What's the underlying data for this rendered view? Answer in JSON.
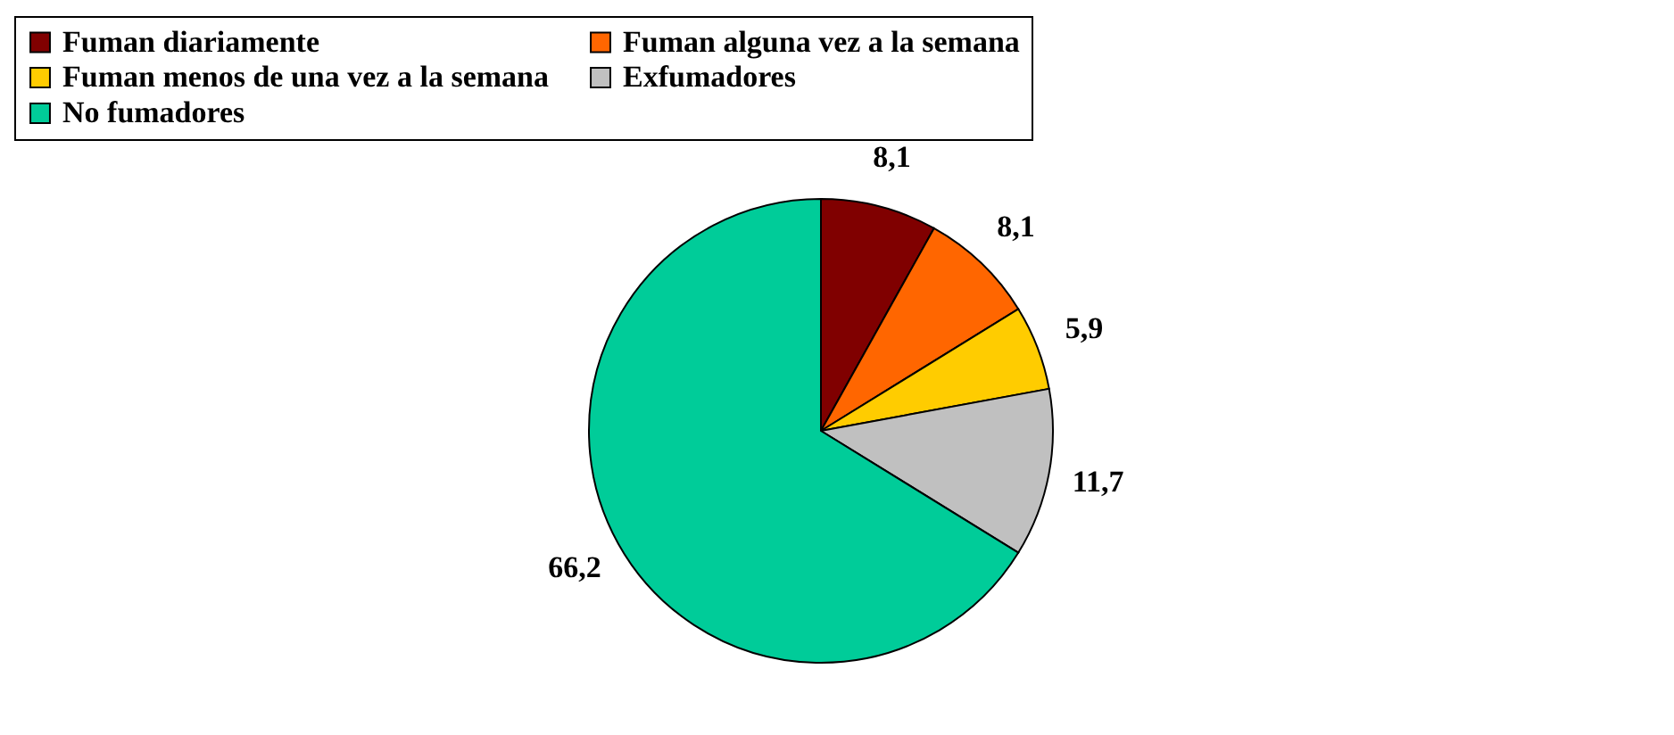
{
  "chart_data": {
    "type": "pie",
    "categories": [
      "Fuman diariamente",
      "Fuman alguna vez a la semana",
      "Fuman menos de una vez a la semana",
      "Exfumadores",
      "No fumadores"
    ],
    "values": [
      8.1,
      8.1,
      5.9,
      11.7,
      66.2
    ],
    "colors": [
      "#800000",
      "#ff6600",
      "#ffcc00",
      "#c0c0c0",
      "#00cc99"
    ],
    "value_labels": [
      "8,1",
      "8,1",
      "5,9",
      "11,7",
      "66,2"
    ],
    "legend": "top"
  }
}
